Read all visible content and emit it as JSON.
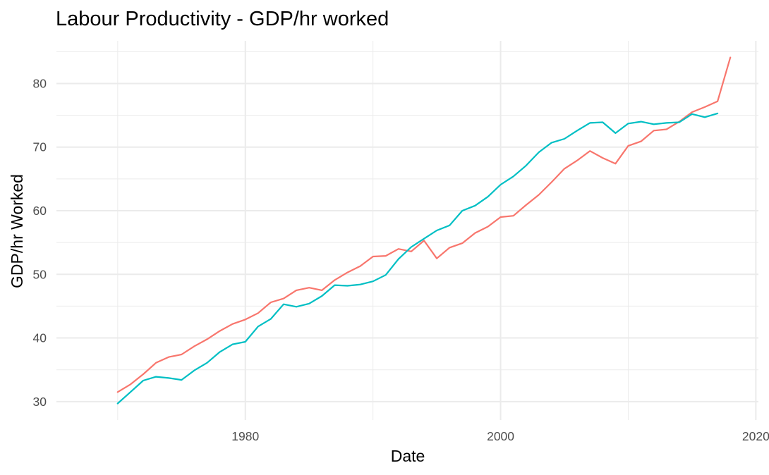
{
  "chart_data": {
    "type": "line",
    "title": "Labour Productivity - GDP/hr worked",
    "xlabel": "Date",
    "ylabel": "GDP/hr Worked",
    "xlim": [
      1965.2,
      2020.2
    ],
    "ylim": [
      27.1,
      86.7
    ],
    "x_ticks": [
      1980,
      2000,
      2020
    ],
    "x_tick_labels": [
      "1980",
      "2000",
      "2020"
    ],
    "x_minor_ticks": [
      1970,
      1990,
      2010
    ],
    "y_ticks": [
      30,
      40,
      50,
      60,
      70,
      80
    ],
    "y_tick_labels": [
      "30",
      "40",
      "50",
      "60",
      "70",
      "80"
    ],
    "y_minor_ticks": [
      35,
      45,
      55,
      65,
      75,
      85
    ],
    "grid": true,
    "legend": "none",
    "series": [
      {
        "color": "#F8766D",
        "x": [
          1970,
          1971,
          1972,
          1973,
          1974,
          1975,
          1976,
          1977,
          1978,
          1979,
          1980,
          1981,
          1982,
          1983,
          1984,
          1985,
          1986,
          1987,
          1988,
          1989,
          1990,
          1991,
          1992,
          1993,
          1994,
          1995,
          1996,
          1997,
          1998,
          1999,
          2000,
          2001,
          2002,
          2003,
          2004,
          2005,
          2006,
          2007,
          2008,
          2009,
          2010,
          2011,
          2012,
          2013,
          2014,
          2015,
          2016,
          2017,
          2018
        ],
        "y": [
          31.5,
          32.7,
          34.3,
          36.1,
          37.0,
          37.4,
          38.7,
          39.8,
          41.1,
          42.2,
          42.9,
          43.9,
          45.6,
          46.2,
          47.5,
          47.9,
          47.5,
          49.1,
          50.3,
          51.3,
          52.8,
          52.9,
          54.0,
          53.6,
          55.3,
          52.5,
          54.2,
          54.9,
          56.5,
          57.5,
          59.0,
          59.2,
          60.9,
          62.5,
          64.5,
          66.6,
          67.9,
          69.4,
          68.3,
          67.4,
          70.2,
          70.9,
          72.6,
          72.8,
          74.0,
          75.5,
          76.3,
          77.2,
          84.1
        ]
      },
      {
        "color": "#00BFC4",
        "x": [
          1970,
          1971,
          1972,
          1973,
          1974,
          1975,
          1976,
          1977,
          1978,
          1979,
          1980,
          1981,
          1982,
          1983,
          1984,
          1985,
          1986,
          1987,
          1988,
          1989,
          1990,
          1991,
          1992,
          1993,
          1994,
          1995,
          1996,
          1997,
          1998,
          1999,
          2000,
          2001,
          2002,
          2003,
          2004,
          2005,
          2006,
          2007,
          2008,
          2009,
          2010,
          2011,
          2012,
          2013,
          2014,
          2015,
          2016,
          2017
        ],
        "y": [
          29.7,
          31.5,
          33.3,
          33.9,
          33.7,
          33.4,
          34.9,
          36.1,
          37.8,
          39.0,
          39.4,
          41.8,
          43.0,
          45.3,
          44.9,
          45.4,
          46.6,
          48.3,
          48.2,
          48.4,
          48.9,
          49.9,
          52.4,
          54.3,
          55.6,
          56.9,
          57.7,
          60.0,
          60.8,
          62.2,
          64.1,
          65.4,
          67.1,
          69.2,
          70.7,
          71.3,
          72.6,
          73.8,
          73.9,
          72.2,
          73.7,
          74.0,
          73.6,
          73.8,
          73.9,
          75.2,
          74.7,
          75.3
        ]
      }
    ]
  }
}
